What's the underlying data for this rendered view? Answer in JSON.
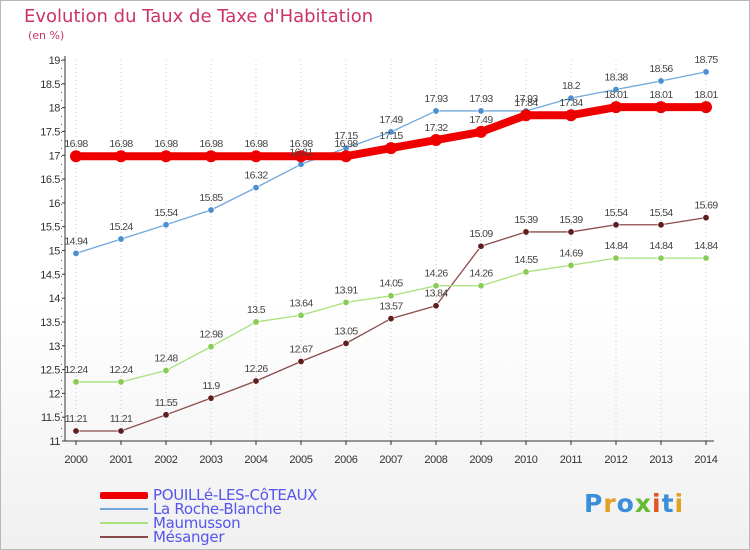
{
  "title": "Evolution du Taux de Taxe d'Habitation",
  "unit_label": "(en %)",
  "logo_text": "Proxiti",
  "colors": {
    "title": "#cc3366",
    "axis": "#333333",
    "grid": "#cccccc",
    "legend_text": "#5555ee"
  },
  "chart_data": {
    "type": "line",
    "title": "Evolution du Taux de Taxe d'Habitation",
    "ylabel": "(en %)",
    "xlabel": "",
    "ylim": [
      11,
      19
    ],
    "yticks": [
      "11",
      "11.5",
      "12",
      "12.5",
      "13",
      "13.5",
      "14",
      "14.5",
      "15",
      "15.5",
      "16",
      "16.5",
      "17",
      "17.5",
      "18",
      "18.5",
      "19"
    ],
    "x": [
      "2000",
      "2001",
      "2002",
      "2003",
      "2004",
      "2005",
      "2006",
      "2007",
      "2008",
      "2009",
      "2010",
      "2011",
      "2012",
      "2013",
      "2014"
    ],
    "grid": "vertical-dotted",
    "legend_position": "bottom-left",
    "series": [
      {
        "name": "POUILLé-LES-CôTEAUX",
        "color": "#ee0000",
        "values": [
          16.98,
          16.98,
          16.98,
          16.98,
          16.98,
          16.98,
          16.98,
          17.15,
          17.32,
          17.49,
          17.84,
          17.84,
          18.01,
          18.01,
          18.01
        ],
        "labels": [
          "16.98",
          "16.98",
          "16.98",
          "16.98",
          "16.98",
          "16.98",
          "16.98",
          "17.15",
          "17.32",
          "17.49",
          "17.84",
          "17.84",
          "18.01",
          "18.01",
          "18.01"
        ]
      },
      {
        "name": "La Roche-Blanche",
        "color": "#6fa8dc",
        "marker": "#4a90d0",
        "values": [
          14.94,
          15.24,
          15.54,
          15.85,
          16.32,
          16.81,
          17.15,
          17.49,
          17.93,
          17.93,
          17.93,
          18.2,
          18.38,
          18.56,
          18.75
        ],
        "labels": [
          "14.94",
          "15.24",
          "15.54",
          "15.85",
          "16.32",
          "16.81",
          "17.15",
          "17.49",
          "17.93",
          "17.93",
          "17.93",
          "18.2",
          "18.38",
          "18.56",
          "18.75"
        ]
      },
      {
        "name": "Maumusson",
        "color": "#a8e07c",
        "marker": "#88cc55",
        "values": [
          12.24,
          12.24,
          12.48,
          12.98,
          13.5,
          13.64,
          13.91,
          14.05,
          14.26,
          14.26,
          14.55,
          14.69,
          14.84,
          14.84,
          14.84
        ],
        "labels": [
          "12.24",
          "12.24",
          "12.48",
          "12.98",
          "13.5",
          "13.64",
          "13.91",
          "14.05",
          "14.26",
          "14.26",
          "14.55",
          "14.69",
          "14.84",
          "14.84",
          "14.84"
        ]
      },
      {
        "name": "Mésanger",
        "color": "#8a4a4a",
        "marker": "#5e1e1e",
        "values": [
          11.21,
          11.21,
          11.55,
          11.9,
          12.26,
          12.67,
          13.05,
          13.57,
          13.84,
          15.09,
          15.39,
          15.39,
          15.54,
          15.54,
          15.69
        ],
        "labels": [
          "11.21",
          "11.21",
          "11.55",
          "11.9",
          "12.26",
          "12.67",
          "13.05",
          "13.57",
          "13.84",
          "15.09",
          "15.39",
          "15.39",
          "15.54",
          "15.54",
          "15.69"
        ]
      }
    ]
  }
}
